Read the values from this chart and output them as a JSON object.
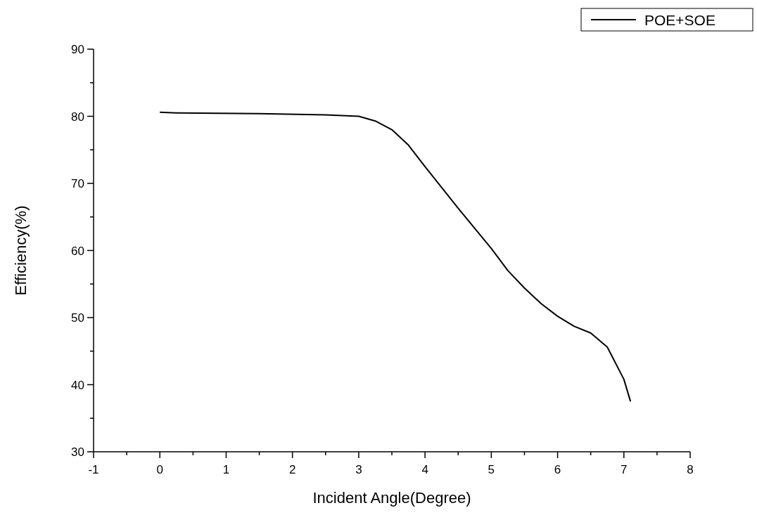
{
  "chart_data": {
    "type": "line",
    "xlabel": "Incident Angle(Degree)",
    "ylabel": "Efficiency(%)",
    "x": [
      0,
      0.25,
      1.5,
      2.5,
      3,
      3.25,
      3.5,
      3.75,
      4,
      4.5,
      5,
      5.25,
      5.5,
      5.75,
      6,
      6.25,
      6.5,
      6.75,
      7,
      7.1
    ],
    "series": [
      {
        "name": "POE+SOE",
        "color": "#000000",
        "values": [
          80.6,
          80.5,
          80.4,
          80.2,
          80.0,
          79.3,
          78.0,
          75.7,
          72.5,
          66.3,
          60.3,
          57.0,
          54.4,
          52.1,
          50.2,
          48.7,
          47.7,
          45.6,
          40.8,
          37.5
        ]
      }
    ],
    "xlim": [
      -1,
      8
    ],
    "xticks": [
      -1,
      {
        "value": -0.5,
        "label": null
      },
      0,
      {
        "value": 0.5,
        "label": null
      },
      1,
      {
        "value": 1.5,
        "label": null
      },
      2,
      {
        "value": 2.5,
        "label": null
      },
      3,
      {
        "value": 3.5,
        "label": null
      },
      4,
      {
        "value": 4.5,
        "label": null
      },
      5,
      {
        "value": 5.5,
        "label": null
      },
      6,
      {
        "value": 6.5,
        "label": null
      },
      7,
      {
        "value": 7.5,
        "label": null
      },
      8
    ],
    "ylim": [
      30,
      90
    ],
    "yticks": [
      30,
      {
        "value": 35,
        "label": null
      },
      40,
      {
        "value": 45,
        "label": null
      },
      50,
      {
        "value": 55,
        "label": null
      },
      60,
      {
        "value": 65,
        "label": null
      },
      70,
      {
        "value": 75,
        "label": null
      },
      80,
      {
        "value": 85,
        "label": null
      },
      90
    ],
    "legend": "top right",
    "grid": false,
    "marker": "none",
    "line_style": "solid"
  }
}
